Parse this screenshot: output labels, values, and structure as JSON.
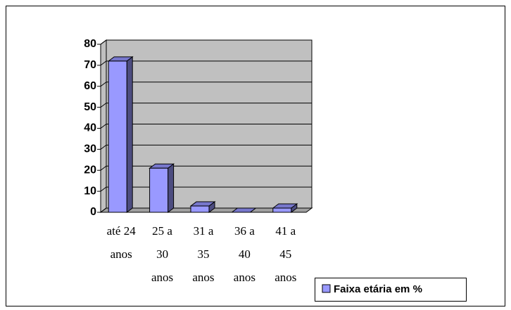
{
  "chart_data": {
    "type": "bar3d",
    "categories": [
      "até 24 anos",
      "25 a 30 anos",
      "31 a 35 anos",
      "36 a 40 anos",
      "41 a 45 anos"
    ],
    "series": [
      {
        "name": "Faixa etária em %",
        "color": "#9999ff",
        "values": [
          72,
          21,
          3,
          0,
          2
        ]
      }
    ],
    "ylim": [
      0,
      80
    ],
    "yticks": [
      0,
      10,
      20,
      30,
      40,
      50,
      60,
      70,
      80
    ],
    "grid": true,
    "legend": "bottom-right"
  }
}
